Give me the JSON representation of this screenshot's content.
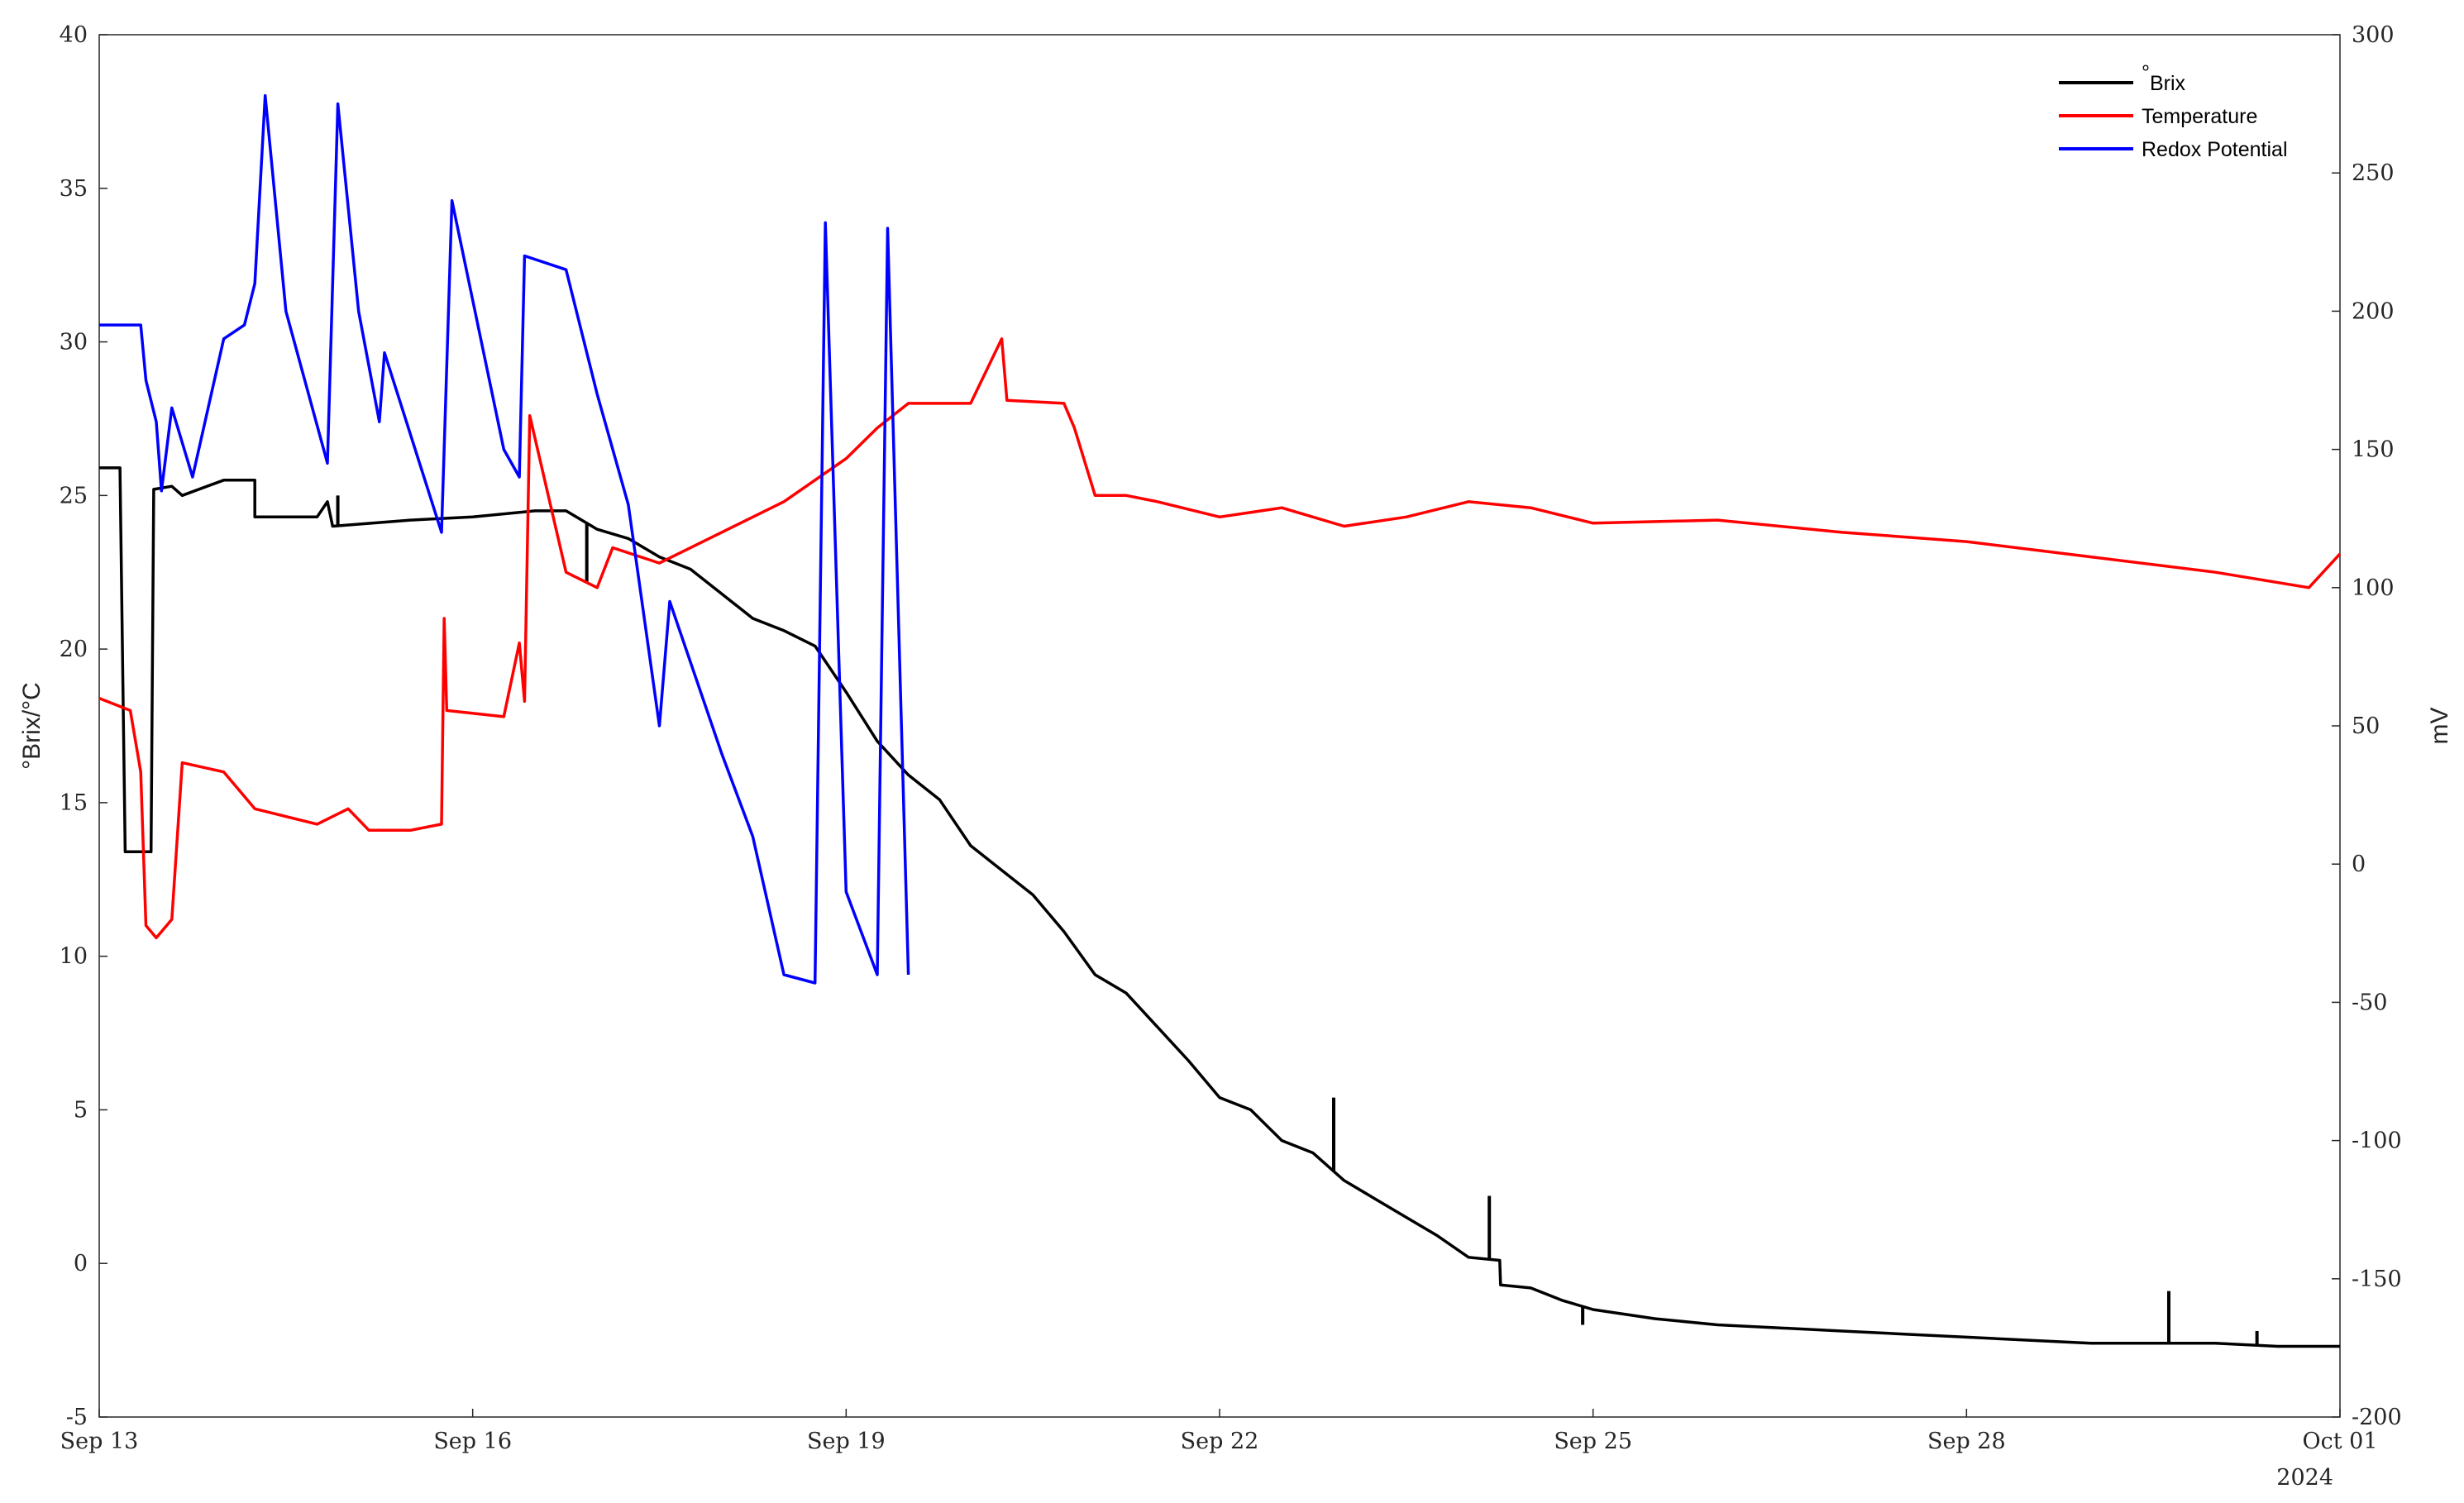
{
  "chart_data": {
    "type": "line",
    "title": "",
    "xlabel": "",
    "x_year_label": "2024",
    "ylabel_left": "°Brix/°C",
    "ylabel_right": "mV",
    "xlim": [
      "2024-09-13T00:00",
      "2024-10-01T00:00"
    ],
    "ylim_left": [
      -5,
      40
    ],
    "ylim_right": [
      -200,
      300
    ],
    "grid": false,
    "legend_position": "top-right",
    "x_ticks": [
      {
        "date": "2024-09-13",
        "label": "Sep 13"
      },
      {
        "date": "2024-09-16",
        "label": "Sep 16"
      },
      {
        "date": "2024-09-19",
        "label": "Sep 19"
      },
      {
        "date": "2024-09-22",
        "label": "Sep 22"
      },
      {
        "date": "2024-09-25",
        "label": "Sep 25"
      },
      {
        "date": "2024-09-28",
        "label": "Sep 28"
      },
      {
        "date": "2024-10-01",
        "label": "Oct 01"
      }
    ],
    "y_ticks_left": [
      40,
      35,
      30,
      25,
      20,
      15,
      10,
      5,
      0,
      -5
    ],
    "y_ticks_right": [
      300,
      250,
      200,
      150,
      100,
      50,
      0,
      -50,
      -100,
      -150,
      -200
    ],
    "series": [
      {
        "name": "°Brix",
        "name_prefix": "°",
        "name_text": "Brix",
        "axis": "left",
        "color": "#000000",
        "points": [
          [
            "2024-09-13T00:00",
            25.9
          ],
          [
            "2024-09-13T04:00",
            25.9
          ],
          [
            "2024-09-13T05:00",
            13.4
          ],
          [
            "2024-09-13T10:00",
            13.4
          ],
          [
            "2024-09-13T10:30",
            25.2
          ],
          [
            "2024-09-13T14:00",
            25.3
          ],
          [
            "2024-09-13T16:00",
            25.0
          ],
          [
            "2024-09-14T00:00",
            25.5
          ],
          [
            "2024-09-14T06:00",
            25.5
          ],
          [
            "2024-09-14T06:00",
            24.3
          ],
          [
            "2024-09-14T18:00",
            24.3
          ],
          [
            "2024-09-14T20:00",
            24.8
          ],
          [
            "2024-09-14T21:00",
            24.0
          ],
          [
            "2024-09-15T12:00",
            24.2
          ],
          [
            "2024-09-16T00:00",
            24.3
          ],
          [
            "2024-09-16T12:00",
            24.5
          ],
          [
            "2024-09-16T18:00",
            24.5
          ],
          [
            "2024-09-17T00:00",
            23.9
          ],
          [
            "2024-09-17T06:00",
            23.6
          ],
          [
            "2024-09-17T12:00",
            23.0
          ],
          [
            "2024-09-17T18:00",
            22.6
          ],
          [
            "2024-09-18T00:00",
            21.8
          ],
          [
            "2024-09-18T06:00",
            21.0
          ],
          [
            "2024-09-18T12:00",
            20.6
          ],
          [
            "2024-09-18T18:00",
            20.1
          ],
          [
            "2024-09-19T00:00",
            18.6
          ],
          [
            "2024-09-19T06:00",
            17.0
          ],
          [
            "2024-09-19T12:00",
            15.9
          ],
          [
            "2024-09-19T18:00",
            15.1
          ],
          [
            "2024-09-20T00:00",
            13.6
          ],
          [
            "2024-09-20T06:00",
            12.8
          ],
          [
            "2024-09-20T12:00",
            12.0
          ],
          [
            "2024-09-20T18:00",
            10.8
          ],
          [
            "2024-09-21T00:00",
            9.4
          ],
          [
            "2024-09-21T06:00",
            8.8
          ],
          [
            "2024-09-21T12:00",
            7.7
          ],
          [
            "2024-09-21T18:00",
            6.6
          ],
          [
            "2024-09-22T00:00",
            5.4
          ],
          [
            "2024-09-22T06:00",
            5.0
          ],
          [
            "2024-09-22T12:00",
            4.0
          ],
          [
            "2024-09-22T18:00",
            3.6
          ],
          [
            "2024-09-23T00:00",
            2.7
          ],
          [
            "2024-09-23T06:00",
            2.1
          ],
          [
            "2024-09-23T12:00",
            1.5
          ],
          [
            "2024-09-23T18:00",
            0.9
          ],
          [
            "2024-09-24T00:00",
            0.2
          ],
          [
            "2024-09-24T06:00",
            0.1
          ],
          [
            "2024-09-24T06:10",
            -0.7
          ],
          [
            "2024-09-24T12:00",
            -0.8
          ],
          [
            "2024-09-24T18:00",
            -1.2
          ],
          [
            "2024-09-25T00:00",
            -1.5
          ],
          [
            "2024-09-25T12:00",
            -1.8
          ],
          [
            "2024-09-26T00:00",
            -2.0
          ],
          [
            "2024-09-26T12:00",
            -2.1
          ],
          [
            "2024-09-27T00:00",
            -2.2
          ],
          [
            "2024-09-27T12:00",
            -2.3
          ],
          [
            "2024-09-28T00:00",
            -2.4
          ],
          [
            "2024-09-28T12:00",
            -2.5
          ],
          [
            "2024-09-29T00:00",
            -2.6
          ],
          [
            "2024-09-29T12:00",
            -2.6
          ],
          [
            "2024-09-30T00:00",
            -2.6
          ],
          [
            "2024-09-30T12:00",
            -2.7
          ],
          [
            "2024-10-01T00:00",
            -2.7
          ]
        ],
        "spikes": [
          [
            "2024-09-14T22:00",
            25.0
          ],
          [
            "2024-09-16T22:00",
            22.2
          ],
          [
            "2024-09-22T22:00",
            5.4
          ],
          [
            "2024-09-24T04:00",
            2.2
          ],
          [
            "2024-09-24T22:00",
            -2.0
          ],
          [
            "2024-09-29T15:00",
            -0.9
          ],
          [
            "2024-09-30T08:00",
            -2.2
          ]
        ]
      },
      {
        "name": "Temperature",
        "axis": "left",
        "color": "#ff0000",
        "points": [
          [
            "2024-09-13T00:00",
            18.4
          ],
          [
            "2024-09-13T06:00",
            18.0
          ],
          [
            "2024-09-13T08:00",
            16.0
          ],
          [
            "2024-09-13T09:00",
            11.0
          ],
          [
            "2024-09-13T11:00",
            10.6
          ],
          [
            "2024-09-13T14:00",
            11.2
          ],
          [
            "2024-09-13T16:00",
            16.3
          ],
          [
            "2024-09-14T00:00",
            16.0
          ],
          [
            "2024-09-14T06:00",
            14.8
          ],
          [
            "2024-09-14T18:00",
            14.3
          ],
          [
            "2024-09-15T00:00",
            14.8
          ],
          [
            "2024-09-15T04:00",
            14.1
          ],
          [
            "2024-09-15T12:00",
            14.1
          ],
          [
            "2024-09-15T18:00",
            14.3
          ],
          [
            "2024-09-15T18:30",
            21.0
          ],
          [
            "2024-09-15T19:00",
            18.0
          ],
          [
            "2024-09-16T06:00",
            17.8
          ],
          [
            "2024-09-16T09:00",
            20.2
          ],
          [
            "2024-09-16T10:00",
            18.3
          ],
          [
            "2024-09-16T11:00",
            27.6
          ],
          [
            "2024-09-16T18:00",
            22.5
          ],
          [
            "2024-09-17T00:00",
            22.0
          ],
          [
            "2024-09-17T03:00",
            23.3
          ],
          [
            "2024-09-17T12:00",
            22.8
          ],
          [
            "2024-09-18T00:00",
            23.8
          ],
          [
            "2024-09-18T12:00",
            24.8
          ],
          [
            "2024-09-19T00:00",
            26.2
          ],
          [
            "2024-09-19T06:00",
            27.2
          ],
          [
            "2024-09-19T12:00",
            28.0
          ],
          [
            "2024-09-20T00:00",
            28.0
          ],
          [
            "2024-09-20T06:00",
            30.1
          ],
          [
            "2024-09-20T07:00",
            28.1
          ],
          [
            "2024-09-20T18:00",
            28.0
          ],
          [
            "2024-09-20T20:00",
            27.2
          ],
          [
            "2024-09-21T00:00",
            25.0
          ],
          [
            "2024-09-21T06:00",
            25.0
          ],
          [
            "2024-09-21T12:00",
            24.8
          ],
          [
            "2024-09-22T00:00",
            24.3
          ],
          [
            "2024-09-22T12:00",
            24.6
          ],
          [
            "2024-09-23T00:00",
            24.0
          ],
          [
            "2024-09-23T12:00",
            24.3
          ],
          [
            "2024-09-24T00:00",
            24.8
          ],
          [
            "2024-09-24T12:00",
            24.6
          ],
          [
            "2024-09-25T00:00",
            24.1
          ],
          [
            "2024-09-26T00:00",
            24.2
          ],
          [
            "2024-09-27T00:00",
            23.8
          ],
          [
            "2024-09-28T00:00",
            23.5
          ],
          [
            "2024-09-29T00:00",
            23.0
          ],
          [
            "2024-09-30T00:00",
            22.5
          ],
          [
            "2024-09-30T18:00",
            22.0
          ],
          [
            "2024-10-01T00:00",
            23.1
          ]
        ]
      },
      {
        "name": "Redox Potential",
        "axis": "right",
        "color": "#0000ff",
        "points": [
          [
            "2024-09-13T00:00",
            195
          ],
          [
            "2024-09-13T08:00",
            195
          ],
          [
            "2024-09-13T09:00",
            175
          ],
          [
            "2024-09-13T11:00",
            160
          ],
          [
            "2024-09-13T12:00",
            135
          ],
          [
            "2024-09-13T14:00",
            165
          ],
          [
            "2024-09-13T18:00",
            140
          ],
          [
            "2024-09-14T00:00",
            190
          ],
          [
            "2024-09-14T04:00",
            195
          ],
          [
            "2024-09-14T06:00",
            210
          ],
          [
            "2024-09-14T08:00",
            278
          ],
          [
            "2024-09-14T12:00",
            200
          ],
          [
            "2024-09-14T20:00",
            145
          ],
          [
            "2024-09-14T22:00",
            275
          ],
          [
            "2024-09-15T02:00",
            200
          ],
          [
            "2024-09-15T06:00",
            160
          ],
          [
            "2024-09-15T07:00",
            185
          ],
          [
            "2024-09-15T18:00",
            120
          ],
          [
            "2024-09-15T20:00",
            240
          ],
          [
            "2024-09-16T06:00",
            150
          ],
          [
            "2024-09-16T09:00",
            140
          ],
          [
            "2024-09-16T10:00",
            220
          ],
          [
            "2024-09-16T18:00",
            215
          ],
          [
            "2024-09-17T00:00",
            170
          ],
          [
            "2024-09-17T06:00",
            130
          ],
          [
            "2024-09-17T12:00",
            50
          ],
          [
            "2024-09-17T14:00",
            95
          ],
          [
            "2024-09-18T00:00",
            40
          ],
          [
            "2024-09-18T06:00",
            10
          ],
          [
            "2024-09-18T12:00",
            -40
          ],
          [
            "2024-09-18T18:00",
            -43
          ],
          [
            "2024-09-18T20:00",
            232
          ],
          [
            "2024-09-19T00:00",
            -10
          ],
          [
            "2024-09-19T06:00",
            -40
          ],
          [
            "2024-09-19T08:00",
            230
          ],
          [
            "2024-09-19T12:00",
            -40
          ]
        ]
      }
    ]
  }
}
